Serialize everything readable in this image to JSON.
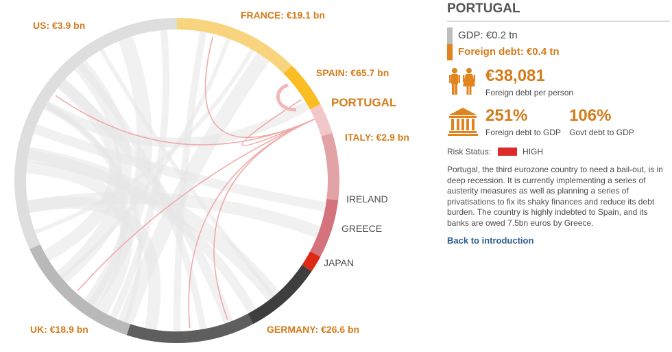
{
  "diagram": {
    "focus_label": "PORTUGAL",
    "segments": [
      {
        "key": "france",
        "label": "FRANCE: €19.1 bn",
        "style": "creditor",
        "color": "#f9d47e"
      },
      {
        "key": "spain",
        "label": "SPAIN: €65.7 bn",
        "style": "creditor",
        "color": "#fbbd24"
      },
      {
        "key": "portugal",
        "label": "PORTUGAL",
        "style": "focus",
        "color": "#f2c7c9"
      },
      {
        "key": "italy",
        "label": "ITALY: €2.9 bn",
        "style": "creditor",
        "color": "#e2a3a7"
      },
      {
        "key": "ireland",
        "label": "IRELAND",
        "style": "plain",
        "color": "#d4737b"
      },
      {
        "key": "greece",
        "label": "GREECE",
        "style": "plain",
        "color": "#dd2a16"
      },
      {
        "key": "japan",
        "label": "JAPAN",
        "style": "plain",
        "color": "#3e3e3e"
      },
      {
        "key": "germany",
        "label": "GERMANY: €26.6 bn",
        "style": "creditor",
        "color": "#5e5e5e"
      },
      {
        "key": "uk",
        "label": "UK: €18.9 bn",
        "style": "creditor",
        "color": "#b9b9b9"
      },
      {
        "key": "us",
        "label": "US: €3.9 bn",
        "style": "creditor",
        "color": "#dedede"
      }
    ]
  },
  "panel": {
    "country": "PORTUGAL",
    "gdp_label": "GDP: €0.2 tn",
    "foreign_debt_label": "Foreign debt: €0.4 tn",
    "per_person_value": "€38,081",
    "per_person_caption": "Foreign debt per person",
    "debt_to_gdp_value": "251%",
    "debt_to_gdp_caption": "Foreign debt to GDP",
    "govt_debt_value": "106%",
    "govt_debt_caption": "Govt debt to GDP",
    "risk_label": "Risk Status:",
    "risk_value": "HIGH",
    "risk_color": "#dd2a2a",
    "description": "Portugal, the third eurozone country to need a bail-out, is in deep recession. It is currently implementing a series of austerity measures as well as planning a series of privatisations to fix its shaky finances and reduce its debt burden. The country is highly indebted to Spain, and its banks are owed 7.5bn euros by Greece.",
    "back_link": "Back to introduction"
  }
}
